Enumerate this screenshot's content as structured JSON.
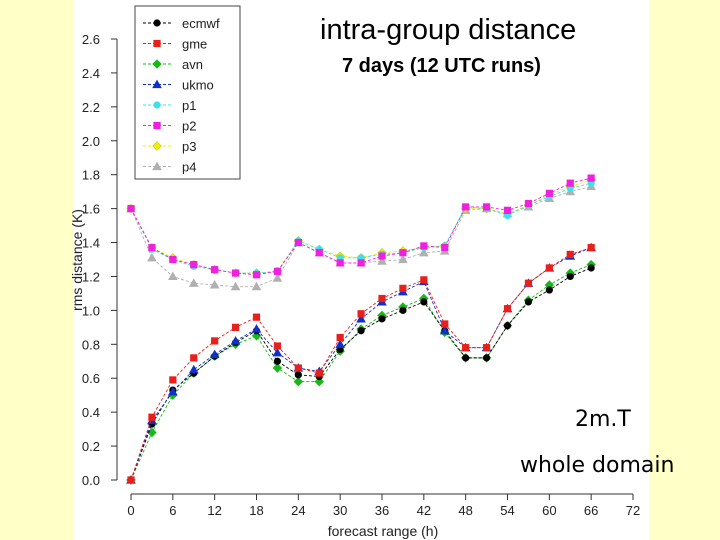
{
  "chart_data": {
    "type": "line",
    "title": "intra-group distance",
    "subtitle": "7 days (12 UTC runs)",
    "xlabel": "forecast range (h)",
    "ylabel": "rms distance (K)",
    "xlim": [
      0,
      72
    ],
    "ylim": [
      0.0,
      2.6
    ],
    "xticks": [
      "0",
      "6",
      "12",
      "18",
      "24",
      "30",
      "36",
      "42",
      "48",
      "54",
      "60",
      "66",
      "72"
    ],
    "yticks": [
      "0.0",
      "0.2",
      "0.4",
      "0.6",
      "0.8",
      "1.0",
      "1.2",
      "1.4",
      "1.6",
      "1.8",
      "2.0",
      "2.2",
      "2.4",
      "2.6"
    ],
    "x": [
      0,
      3,
      6,
      9,
      12,
      15,
      18,
      21,
      24,
      27,
      30,
      33,
      36,
      39,
      42,
      45,
      48,
      51,
      54,
      57,
      60,
      63,
      66
    ],
    "legend_position": "top-left",
    "series": [
      {
        "name": "ecmwf",
        "color": "#000000",
        "marker": "circle",
        "values": [
          0.0,
          0.33,
          0.53,
          0.63,
          0.73,
          0.81,
          0.88,
          0.7,
          0.62,
          0.61,
          0.77,
          0.88,
          0.95,
          1.0,
          1.05,
          0.88,
          0.72,
          0.72,
          0.91,
          1.05,
          1.12,
          1.2,
          1.25
        ]
      },
      {
        "name": "gme",
        "color": "#e8201c",
        "marker": "square",
        "values": [
          0.0,
          0.37,
          0.59,
          0.72,
          0.82,
          0.9,
          0.96,
          0.79,
          0.66,
          0.63,
          0.84,
          0.98,
          1.07,
          1.13,
          1.18,
          0.92,
          0.78,
          0.78,
          1.01,
          1.16,
          1.25,
          1.33,
          1.37
        ]
      },
      {
        "name": "avn",
        "color": "#18b818",
        "marker": "diamond",
        "values": [
          0.0,
          0.28,
          0.5,
          0.63,
          0.73,
          0.8,
          0.85,
          0.66,
          0.58,
          0.58,
          0.76,
          0.89,
          0.97,
          1.02,
          1.07,
          0.87,
          0.72,
          0.72,
          0.91,
          1.06,
          1.15,
          1.22,
          1.27
        ]
      },
      {
        "name": "ukmo",
        "color": "#1030c8",
        "marker": "triangle",
        "values": [
          0.0,
          0.35,
          0.52,
          0.65,
          0.74,
          0.82,
          0.89,
          0.75,
          0.66,
          0.64,
          0.8,
          0.95,
          1.05,
          1.11,
          1.17,
          0.88,
          0.78,
          0.78,
          1.01,
          1.16,
          1.25,
          1.32,
          1.37
        ]
      },
      {
        "name": "p1",
        "color": "#40e0e8",
        "marker": "circle",
        "values": [
          1.6,
          1.36,
          1.3,
          1.26,
          1.24,
          1.22,
          1.22,
          1.23,
          1.41,
          1.36,
          1.31,
          1.31,
          1.33,
          1.34,
          1.37,
          1.38,
          1.61,
          1.6,
          1.56,
          1.62,
          1.67,
          1.72,
          1.75
        ]
      },
      {
        "name": "p2",
        "color": "#f020e0",
        "marker": "square",
        "values": [
          1.6,
          1.37,
          1.3,
          1.27,
          1.24,
          1.22,
          1.21,
          1.23,
          1.4,
          1.34,
          1.28,
          1.28,
          1.32,
          1.34,
          1.38,
          1.37,
          1.61,
          1.61,
          1.59,
          1.63,
          1.69,
          1.75,
          1.78
        ]
      },
      {
        "name": "p3",
        "color": "#f0f000",
        "marker": "diamond",
        "values": [
          1.6,
          1.37,
          1.31,
          1.27,
          1.24,
          1.22,
          1.22,
          1.23,
          1.41,
          1.36,
          1.32,
          1.31,
          1.34,
          1.35,
          1.37,
          1.38,
          1.6,
          1.6,
          1.57,
          1.62,
          1.68,
          1.73,
          1.77
        ]
      },
      {
        "name": "p4",
        "color": "#b0b0b0",
        "marker": "triangle",
        "values": [
          1.6,
          1.31,
          1.2,
          1.16,
          1.15,
          1.14,
          1.14,
          1.19,
          1.4,
          1.34,
          1.28,
          1.28,
          1.29,
          1.3,
          1.34,
          1.35,
          1.59,
          1.6,
          1.57,
          1.61,
          1.66,
          1.7,
          1.73
        ]
      }
    ],
    "annotations": [
      "2m.T",
      "whole domain"
    ]
  }
}
